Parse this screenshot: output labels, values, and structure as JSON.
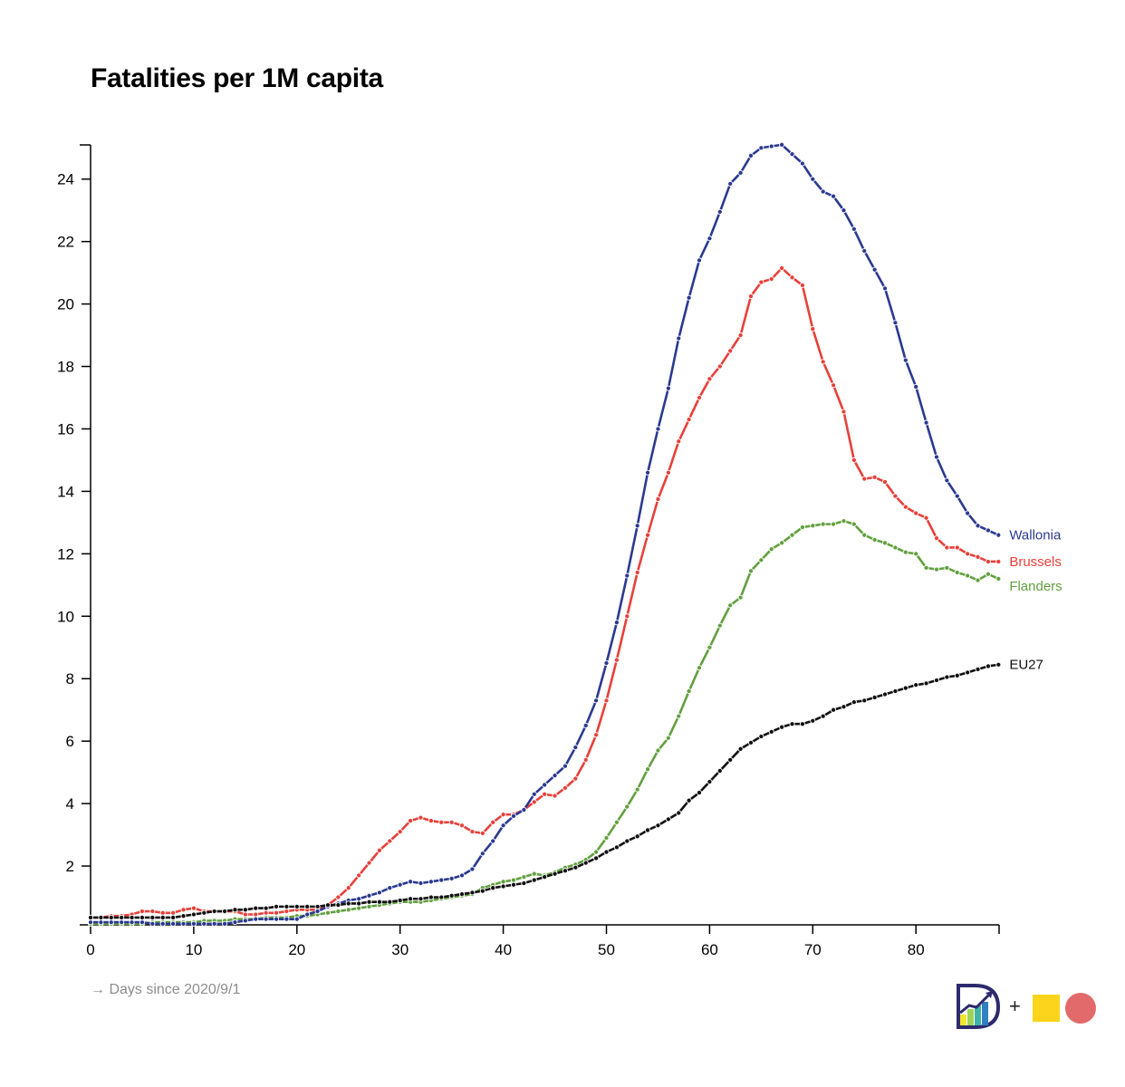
{
  "chart_data": {
    "type": "line",
    "title": "Fatalities per 1M capita",
    "xlabel": "→ Days since 2020/9/1",
    "ylabel": "",
    "xlim": [
      0,
      88
    ],
    "ylim": [
      0,
      25
    ],
    "x_ticks": [
      0,
      10,
      20,
      30,
      40,
      50,
      60,
      70,
      80
    ],
    "y_ticks": [
      2,
      4,
      6,
      8,
      10,
      12,
      14,
      16,
      18,
      20,
      22,
      24
    ],
    "grid": false,
    "legend": "inline labels at line ends (right)",
    "series": [
      {
        "name": "Wallonia",
        "color": "#2b3990",
        "values": [
          0.2,
          0.2,
          0.2,
          0.2,
          0.2,
          0.2,
          0.15,
          0.15,
          0.15,
          0.15,
          0.15,
          0.15,
          0.15,
          0.15,
          0.2,
          0.25,
          0.3,
          0.3,
          0.3,
          0.3,
          0.3,
          0.45,
          0.55,
          0.7,
          0.8,
          0.9,
          0.95,
          1.05,
          1.15,
          1.3,
          1.4,
          1.5,
          1.45,
          1.5,
          1.55,
          1.6,
          1.7,
          1.9,
          2.4,
          2.8,
          3.3,
          3.6,
          3.8,
          4.3,
          4.6,
          4.9,
          5.2,
          5.8,
          6.5,
          7.3,
          8.5,
          9.8,
          11.3,
          12.9,
          14.6,
          16.0,
          17.3,
          18.9,
          20.2,
          21.4,
          22.1,
          22.95,
          23.85,
          24.2,
          24.75,
          25.0,
          25.05,
          25.1,
          24.8,
          24.5,
          24.0,
          23.6,
          23.45,
          23.0,
          22.4,
          21.7,
          21.1,
          20.5,
          19.4,
          18.2,
          17.35,
          16.2,
          15.1,
          14.35,
          13.85,
          13.3,
          12.9,
          12.75,
          12.6
        ]
      },
      {
        "name": "Brussels",
        "color": "#e8403a",
        "values": [
          0.35,
          0.35,
          0.4,
          0.4,
          0.45,
          0.55,
          0.55,
          0.5,
          0.5,
          0.6,
          0.65,
          0.55,
          0.55,
          0.55,
          0.55,
          0.45,
          0.45,
          0.5,
          0.5,
          0.55,
          0.6,
          0.6,
          0.6,
          0.75,
          1.0,
          1.3,
          1.7,
          2.1,
          2.5,
          2.8,
          3.1,
          3.45,
          3.55,
          3.45,
          3.4,
          3.4,
          3.3,
          3.1,
          3.05,
          3.4,
          3.65,
          3.65,
          3.8,
          4.05,
          4.3,
          4.25,
          4.5,
          4.8,
          5.4,
          6.2,
          7.3,
          8.6,
          10.0,
          11.4,
          12.6,
          13.75,
          14.6,
          15.6,
          16.3,
          17.0,
          17.6,
          18.0,
          18.5,
          19.0,
          20.25,
          20.7,
          20.8,
          21.15,
          20.85,
          20.6,
          19.2,
          18.15,
          17.4,
          16.55,
          15.0,
          14.4,
          14.45,
          14.3,
          13.85,
          13.5,
          13.3,
          13.15,
          12.5,
          12.2,
          12.2,
          12.0,
          11.9,
          11.75,
          11.75
        ]
      },
      {
        "name": "Flanders",
        "color": "#62a03f",
        "values": [
          0.15,
          0.15,
          0.15,
          0.15,
          0.15,
          0.15,
          0.2,
          0.2,
          0.2,
          0.2,
          0.2,
          0.25,
          0.25,
          0.25,
          0.3,
          0.3,
          0.3,
          0.35,
          0.35,
          0.35,
          0.4,
          0.4,
          0.45,
          0.5,
          0.55,
          0.6,
          0.65,
          0.7,
          0.75,
          0.8,
          0.85,
          0.85,
          0.85,
          0.9,
          0.95,
          1.0,
          1.05,
          1.1,
          1.3,
          1.4,
          1.5,
          1.55,
          1.65,
          1.75,
          1.7,
          1.8,
          1.95,
          2.05,
          2.2,
          2.45,
          2.9,
          3.4,
          3.9,
          4.45,
          5.1,
          5.7,
          6.1,
          6.8,
          7.6,
          8.35,
          9.0,
          9.7,
          10.35,
          10.6,
          11.45,
          11.8,
          12.15,
          12.35,
          12.6,
          12.85,
          12.9,
          12.95,
          12.95,
          13.05,
          12.95,
          12.6,
          12.45,
          12.35,
          12.2,
          12.05,
          12.0,
          11.55,
          11.5,
          11.55,
          11.4,
          11.3,
          11.15,
          11.35,
          11.2
        ]
      },
      {
        "name": "EU27",
        "color": "#111111",
        "values": [
          0.35,
          0.35,
          0.35,
          0.35,
          0.35,
          0.35,
          0.35,
          0.35,
          0.35,
          0.4,
          0.45,
          0.5,
          0.55,
          0.55,
          0.6,
          0.6,
          0.65,
          0.65,
          0.7,
          0.7,
          0.7,
          0.7,
          0.7,
          0.75,
          0.75,
          0.8,
          0.8,
          0.85,
          0.85,
          0.85,
          0.9,
          0.95,
          0.95,
          1.0,
          1.0,
          1.05,
          1.1,
          1.15,
          1.2,
          1.3,
          1.35,
          1.4,
          1.45,
          1.55,
          1.65,
          1.75,
          1.85,
          1.95,
          2.1,
          2.25,
          2.45,
          2.6,
          2.8,
          2.95,
          3.15,
          3.3,
          3.5,
          3.7,
          4.1,
          4.35,
          4.7,
          5.05,
          5.4,
          5.75,
          5.95,
          6.15,
          6.3,
          6.45,
          6.55,
          6.55,
          6.65,
          6.8,
          7.0,
          7.1,
          7.25,
          7.3,
          7.4,
          7.5,
          7.6,
          7.7,
          7.8,
          7.85,
          7.95,
          8.05,
          8.1,
          8.2,
          8.3,
          8.4,
          8.45
        ]
      }
    ]
  },
  "logo": {
    "plus": "+",
    "yellow": "#fbd41b",
    "red": "#e36a6a",
    "logo_icon": "d-chart-logo-icon"
  }
}
